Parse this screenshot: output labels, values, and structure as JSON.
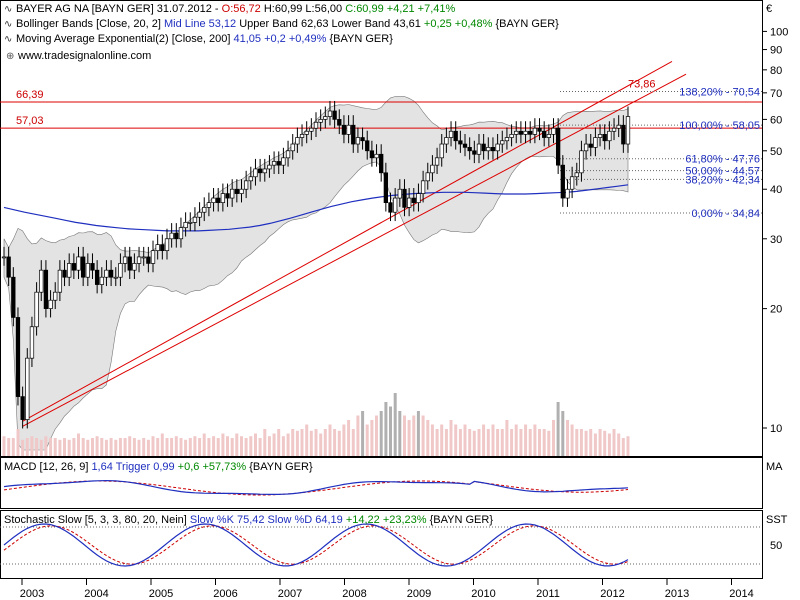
{
  "header": {
    "line1": {
      "symbol": "BAYER AG  NA [BAYN GER] 31.07.2012 - ",
      "open": "O:56,72",
      "hl": " H:60,99 L:56,00 ",
      "close": "C:60,99 +4,21 +7,41%"
    },
    "line2": {
      "name": "Bollinger Bands [Close, 20, 2] ",
      "mid": "Mid Line 53,12",
      "rest": " Upper Band 62,63 Lower Band 43,61 ",
      "chg": "+0,25 +0,48%",
      "tail": " {BAYN GER}"
    },
    "line3": {
      "name": "Moving Average Exponential(2) [Close, 200] ",
      "val": "41,05 +0,2 +0,49%",
      "tail": " {BAYN GER}"
    },
    "watermark": "www.tradesignalonline.com"
  },
  "macd_label": {
    "name": "MACD [12, 26, 9] ",
    "val": "1,64",
    "trig": " Trigger 0,99",
    "chg": " +0,6 +57,73%",
    "tail": " {BAYN GER}"
  },
  "stoch_label": {
    "name": "Stochastic Slow [5, 3, 3, 80, 20, Nein] ",
    "k": "Slow %K 75,42",
    "d": " Slow %D 64,19",
    "chg": " +14,22 +23,23%",
    "tail": " {BAYN GER}"
  },
  "colors": {
    "candle_up": "#ffffff",
    "candle": "#000000",
    "band_fill": "#e3e3e3",
    "ma": "#1f2fbf",
    "trend": "#dd0000",
    "vol": "#f0c8c8",
    "vol_dark": "#b0b0b0",
    "fib": "#1f2fbf"
  },
  "chart_data": {
    "type": "candlestick",
    "yscale": "log",
    "ylim": [
      8.5,
      120
    ],
    "currency": "€",
    "y_ticks": [
      10,
      20,
      30,
      40,
      50,
      60,
      70,
      80,
      90,
      100
    ],
    "x_ticks": [
      "2003",
      "2004",
      "2005",
      "2006",
      "2007",
      "2008",
      "2009",
      "2010",
      "2011",
      "2012",
      "2013",
      "2014"
    ],
    "h_levels": [
      {
        "label": "66,39",
        "value": 66.39
      },
      {
        "label": "57,03",
        "value": 57.03
      }
    ],
    "trend_labels": [
      {
        "label": "73,86",
        "value": 73.86
      }
    ],
    "fib_levels": [
      {
        "label": "138,20% - 70,54",
        "value": 70.54
      },
      {
        "label": "100,00% - 58,05",
        "value": 58.05
      },
      {
        "label": "61,80% - 47,76",
        "value": 47.76
      },
      {
        "label": "50,00% - 44,57",
        "value": 44.57
      },
      {
        "label": "38,20% - 42,34",
        "value": 42.34
      },
      {
        "label": "0,00% - 34,84",
        "value": 34.84
      }
    ],
    "close": [
      27,
      24,
      19,
      12,
      10.5,
      15,
      18,
      22,
      25,
      20,
      21,
      22,
      25,
      24,
      26,
      25,
      27,
      24,
      26,
      25,
      23,
      24,
      25,
      24,
      24,
      26,
      27,
      25,
      26,
      27,
      27,
      26,
      28,
      29,
      28,
      30,
      31,
      30,
      32,
      33,
      33,
      34,
      35,
      36,
      37,
      38,
      37,
      39,
      38,
      40,
      39,
      40,
      42,
      43,
      45,
      44,
      45,
      46,
      47,
      46,
      48,
      50,
      52,
      54,
      55,
      56,
      57,
      59,
      60,
      61,
      63,
      60,
      58,
      55,
      58,
      52,
      54,
      53,
      50,
      48,
      49,
      44,
      37,
      35,
      38,
      40,
      36,
      38,
      37,
      39,
      42,
      44,
      46,
      48,
      52,
      54,
      56,
      53,
      52,
      51,
      50,
      49,
      52,
      50,
      51,
      50,
      52,
      53,
      54,
      55,
      56,
      55,
      56,
      55,
      57,
      56,
      54,
      55,
      57,
      46,
      38,
      40,
      43,
      44,
      50,
      52,
      51,
      54,
      55,
      53,
      56,
      57,
      58,
      52,
      61
    ],
    "ma200": [
      36,
      35.5,
      35,
      34.6,
      34.2,
      33.8,
      33.4,
      33,
      32.7,
      32.4,
      32.2,
      32,
      31.8,
      31.7,
      31.6,
      31.5,
      31.4,
      31.4,
      31.4,
      31.4,
      31.5,
      31.6,
      31.7,
      31.9,
      32.1,
      32.4,
      32.8,
      33.3,
      33.8,
      34.4,
      35,
      35.6,
      36.2,
      36.7,
      37.2,
      37.6,
      38,
      38.3,
      38.6,
      38.8,
      39,
      39.1,
      39.2,
      39.3,
      39.3,
      39.3,
      39.2,
      39.1,
      39,
      38.9,
      38.9,
      38.9,
      39,
      39.1,
      39.2,
      39.3,
      39.5,
      39.8,
      40.1,
      40.4,
      40.7,
      41.05
    ],
    "volume": [
      0.22,
      0.2,
      0.2,
      0.3,
      0.18,
      0.2,
      0.22,
      0.2,
      0.18,
      0.22,
      0.2,
      0.2,
      0.18,
      0.2,
      0.18,
      0.2,
      0.25,
      0.2,
      0.18,
      0.2,
      0.22,
      0.2,
      0.18,
      0.2,
      0.18,
      0.2,
      0.2,
      0.22,
      0.2,
      0.18,
      0.2,
      0.18,
      0.22,
      0.2,
      0.25,
      0.2,
      0.2,
      0.22,
      0.2,
      0.18,
      0.2,
      0.22,
      0.2,
      0.25,
      0.2,
      0.22,
      0.2,
      0.25,
      0.22,
      0.2,
      0.25,
      0.22,
      0.2,
      0.22,
      0.25,
      0.2,
      0.3,
      0.22,
      0.25,
      0.3,
      0.22,
      0.25,
      0.3,
      0.28,
      0.3,
      0.35,
      0.28,
      0.3,
      0.25,
      0.3,
      0.35,
      0.3,
      0.28,
      0.35,
      0.4,
      0.3,
      0.45,
      0.5,
      0.35,
      0.4,
      0.45,
      0.5,
      0.6,
      0.55,
      0.7,
      0.5,
      0.45,
      0.4,
      0.45,
      0.5,
      0.45,
      0.4,
      0.35,
      0.3,
      0.35,
      0.3,
      0.4,
      0.35,
      0.3,
      0.35,
      0.3,
      0.28,
      0.3,
      0.35,
      0.3,
      0.35,
      0.3,
      0.3,
      0.4,
      0.3,
      0.35,
      0.3,
      0.35,
      0.3,
      0.35,
      0.3,
      0.3,
      0.28,
      0.4,
      0.6,
      0.5,
      0.4,
      0.35,
      0.3,
      0.3,
      0.28,
      0.3,
      0.25,
      0.3,
      0.28,
      0.25,
      0.3,
      0.25,
      0.2,
      0.22
    ],
    "macd_value": 1.64,
    "macd_trigger": 0.99,
    "stoch_k": 75.42,
    "stoch_d": 64.19,
    "stoch_ticks": [
      50
    ]
  }
}
